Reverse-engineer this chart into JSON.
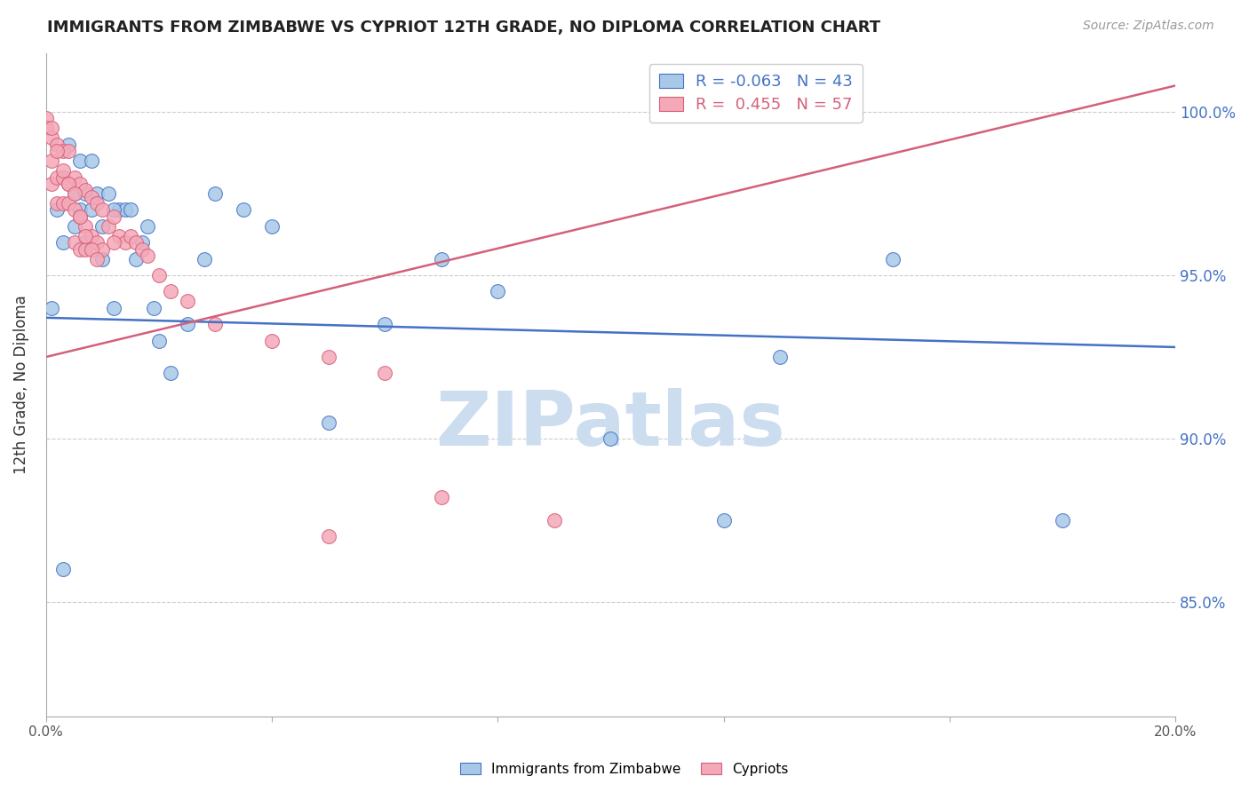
{
  "title": "IMMIGRANTS FROM ZIMBABWE VS CYPRIOT 12TH GRADE, NO DIPLOMA CORRELATION CHART",
  "source": "Source: ZipAtlas.com",
  "ylabel": "12th Grade, No Diploma",
  "ytick_labels": [
    "85.0%",
    "90.0%",
    "95.0%",
    "100.0%"
  ],
  "ytick_values": [
    0.85,
    0.9,
    0.95,
    1.0
  ],
  "xlim": [
    0.0,
    0.2
  ],
  "ylim": [
    0.815,
    1.018
  ],
  "legend_blue_R": "-0.063",
  "legend_blue_N": "43",
  "legend_pink_R": "0.455",
  "legend_pink_N": "57",
  "blue_color": "#a8c8e8",
  "pink_color": "#f4a8b8",
  "blue_line_color": "#4472C4",
  "pink_line_color": "#d4607a",
  "watermark": "ZIPatlas",
  "watermark_color": "#ccddf0",
  "blue_line_x0": 0.0,
  "blue_line_y0": 0.937,
  "blue_line_x1": 0.2,
  "blue_line_y1": 0.928,
  "pink_line_x0": 0.0,
  "pink_line_y0": 0.925,
  "pink_line_x1": 0.2,
  "pink_line_y1": 1.008,
  "blue_scatter_x": [
    0.001,
    0.002,
    0.003,
    0.004,
    0.005,
    0.006,
    0.007,
    0.008,
    0.009,
    0.01,
    0.011,
    0.012,
    0.013,
    0.014,
    0.015,
    0.016,
    0.017,
    0.018,
    0.019,
    0.02,
    0.022,
    0.025,
    0.028,
    0.03,
    0.035,
    0.04,
    0.05,
    0.06,
    0.07,
    0.08,
    0.1,
    0.12,
    0.13,
    0.003,
    0.005,
    0.006,
    0.007,
    0.008,
    0.01,
    0.012,
    0.003,
    0.15,
    0.18
  ],
  "blue_scatter_y": [
    0.94,
    0.97,
    0.98,
    0.99,
    0.975,
    0.985,
    0.975,
    0.985,
    0.975,
    0.965,
    0.975,
    0.94,
    0.97,
    0.97,
    0.97,
    0.955,
    0.96,
    0.965,
    0.94,
    0.93,
    0.92,
    0.935,
    0.955,
    0.975,
    0.97,
    0.965,
    0.905,
    0.935,
    0.955,
    0.945,
    0.9,
    0.875,
    0.925,
    0.96,
    0.965,
    0.97,
    0.96,
    0.97,
    0.955,
    0.97,
    0.86,
    0.955,
    0.875
  ],
  "pink_scatter_x": [
    0.0,
    0.0,
    0.001,
    0.001,
    0.001,
    0.002,
    0.002,
    0.002,
    0.003,
    0.003,
    0.003,
    0.004,
    0.004,
    0.004,
    0.005,
    0.005,
    0.005,
    0.006,
    0.006,
    0.006,
    0.007,
    0.007,
    0.007,
    0.008,
    0.008,
    0.009,
    0.009,
    0.01,
    0.01,
    0.011,
    0.012,
    0.013,
    0.014,
    0.015,
    0.016,
    0.017,
    0.018,
    0.02,
    0.022,
    0.025,
    0.03,
    0.04,
    0.05,
    0.06,
    0.07,
    0.09,
    0.001,
    0.002,
    0.003,
    0.004,
    0.005,
    0.006,
    0.007,
    0.008,
    0.009,
    0.012,
    0.05
  ],
  "pink_scatter_y": [
    0.998,
    0.995,
    0.992,
    0.985,
    0.978,
    0.99,
    0.98,
    0.972,
    0.988,
    0.98,
    0.972,
    0.988,
    0.978,
    0.972,
    0.98,
    0.97,
    0.96,
    0.978,
    0.968,
    0.958,
    0.976,
    0.965,
    0.958,
    0.974,
    0.962,
    0.972,
    0.96,
    0.97,
    0.958,
    0.965,
    0.968,
    0.962,
    0.96,
    0.962,
    0.96,
    0.958,
    0.956,
    0.95,
    0.945,
    0.942,
    0.935,
    0.93,
    0.925,
    0.92,
    0.882,
    0.875,
    0.995,
    0.988,
    0.982,
    0.978,
    0.975,
    0.968,
    0.962,
    0.958,
    0.955,
    0.96,
    0.87
  ]
}
